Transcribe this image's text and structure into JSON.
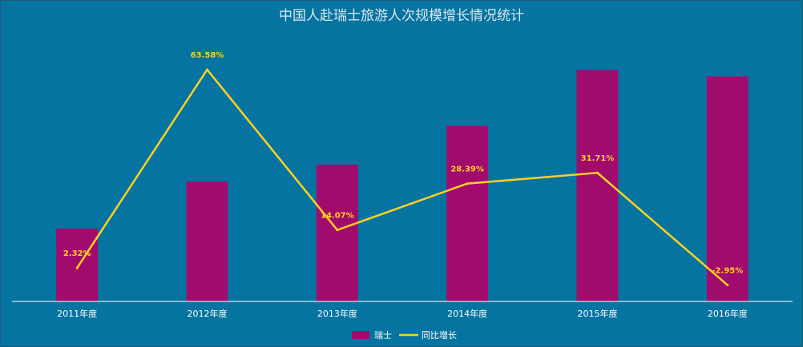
{
  "chart_data": {
    "type": "bar+line",
    "title": "中国人赴瑞士旅游人次规模增长情况统计",
    "categories": [
      "2011年度",
      "2012年度",
      "2013年度",
      "2014年度",
      "2015年度",
      "2016年度"
    ],
    "series": [
      {
        "name": "瑞士",
        "type": "bar",
        "axis": "primary",
        "values": [
          0.9,
          1.48,
          1.69,
          2.17,
          2.86,
          2.78
        ],
        "color": "#a20b6e"
      },
      {
        "name": "同比增长",
        "type": "line",
        "axis": "secondary",
        "values": [
          2.32,
          63.58,
          14.07,
          28.39,
          31.71,
          -2.95
        ],
        "labels": [
          "2.32%",
          "63.58%",
          "14.07%",
          "28.39%",
          "31.71%",
          "-2.95%"
        ],
        "color": "#ffd21f"
      }
    ],
    "primary_ylim": [
      0,
      3.2
    ],
    "secondary_ylim": [
      -8,
      72
    ],
    "y_axes_visible": false,
    "grid": false,
    "legend": "bottom-center",
    "background_color": "#0674a1",
    "axis_color": "#ffffff"
  }
}
